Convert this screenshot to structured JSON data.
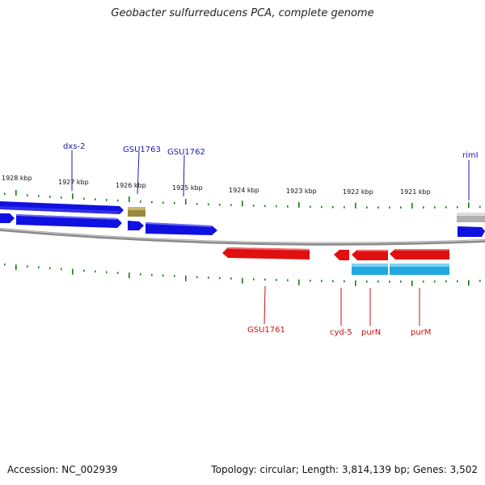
{
  "header": {
    "title": "Geobacter sulfurreducens PCA, complete genome"
  },
  "footer": {
    "accession": "Accession: NC_002939",
    "summary": "Topology: circular; Length: 3,814,139 bp; Genes: 3,502"
  },
  "colors": {
    "forward_gene": "#1010e0",
    "forward_label": "#1a1ab0",
    "reverse_gene": "#e01010",
    "reverse_label": "#cc1010",
    "rna_gene": "#20a8e0",
    "pseudo_gene": "#9a8a3a",
    "other_gene": "#b0b0b0",
    "backbone": "#8a8a8a",
    "tick": "#1a7a1a"
  },
  "scale": {
    "unit": "kbp",
    "ticks": [
      "1928 kbp",
      "1927 kbp",
      "1926 kbp",
      "1925 kbp",
      "1924 kbp",
      "1923 kbp",
      "1922 kbp",
      "1921 kbp"
    ]
  },
  "genes": {
    "forward_labels": [
      "dxs-2",
      "GSU1763",
      "GSU1762",
      "rimI"
    ],
    "reverse_labels": [
      "GSU1761",
      "cyd-5",
      "purN",
      "purM"
    ]
  }
}
